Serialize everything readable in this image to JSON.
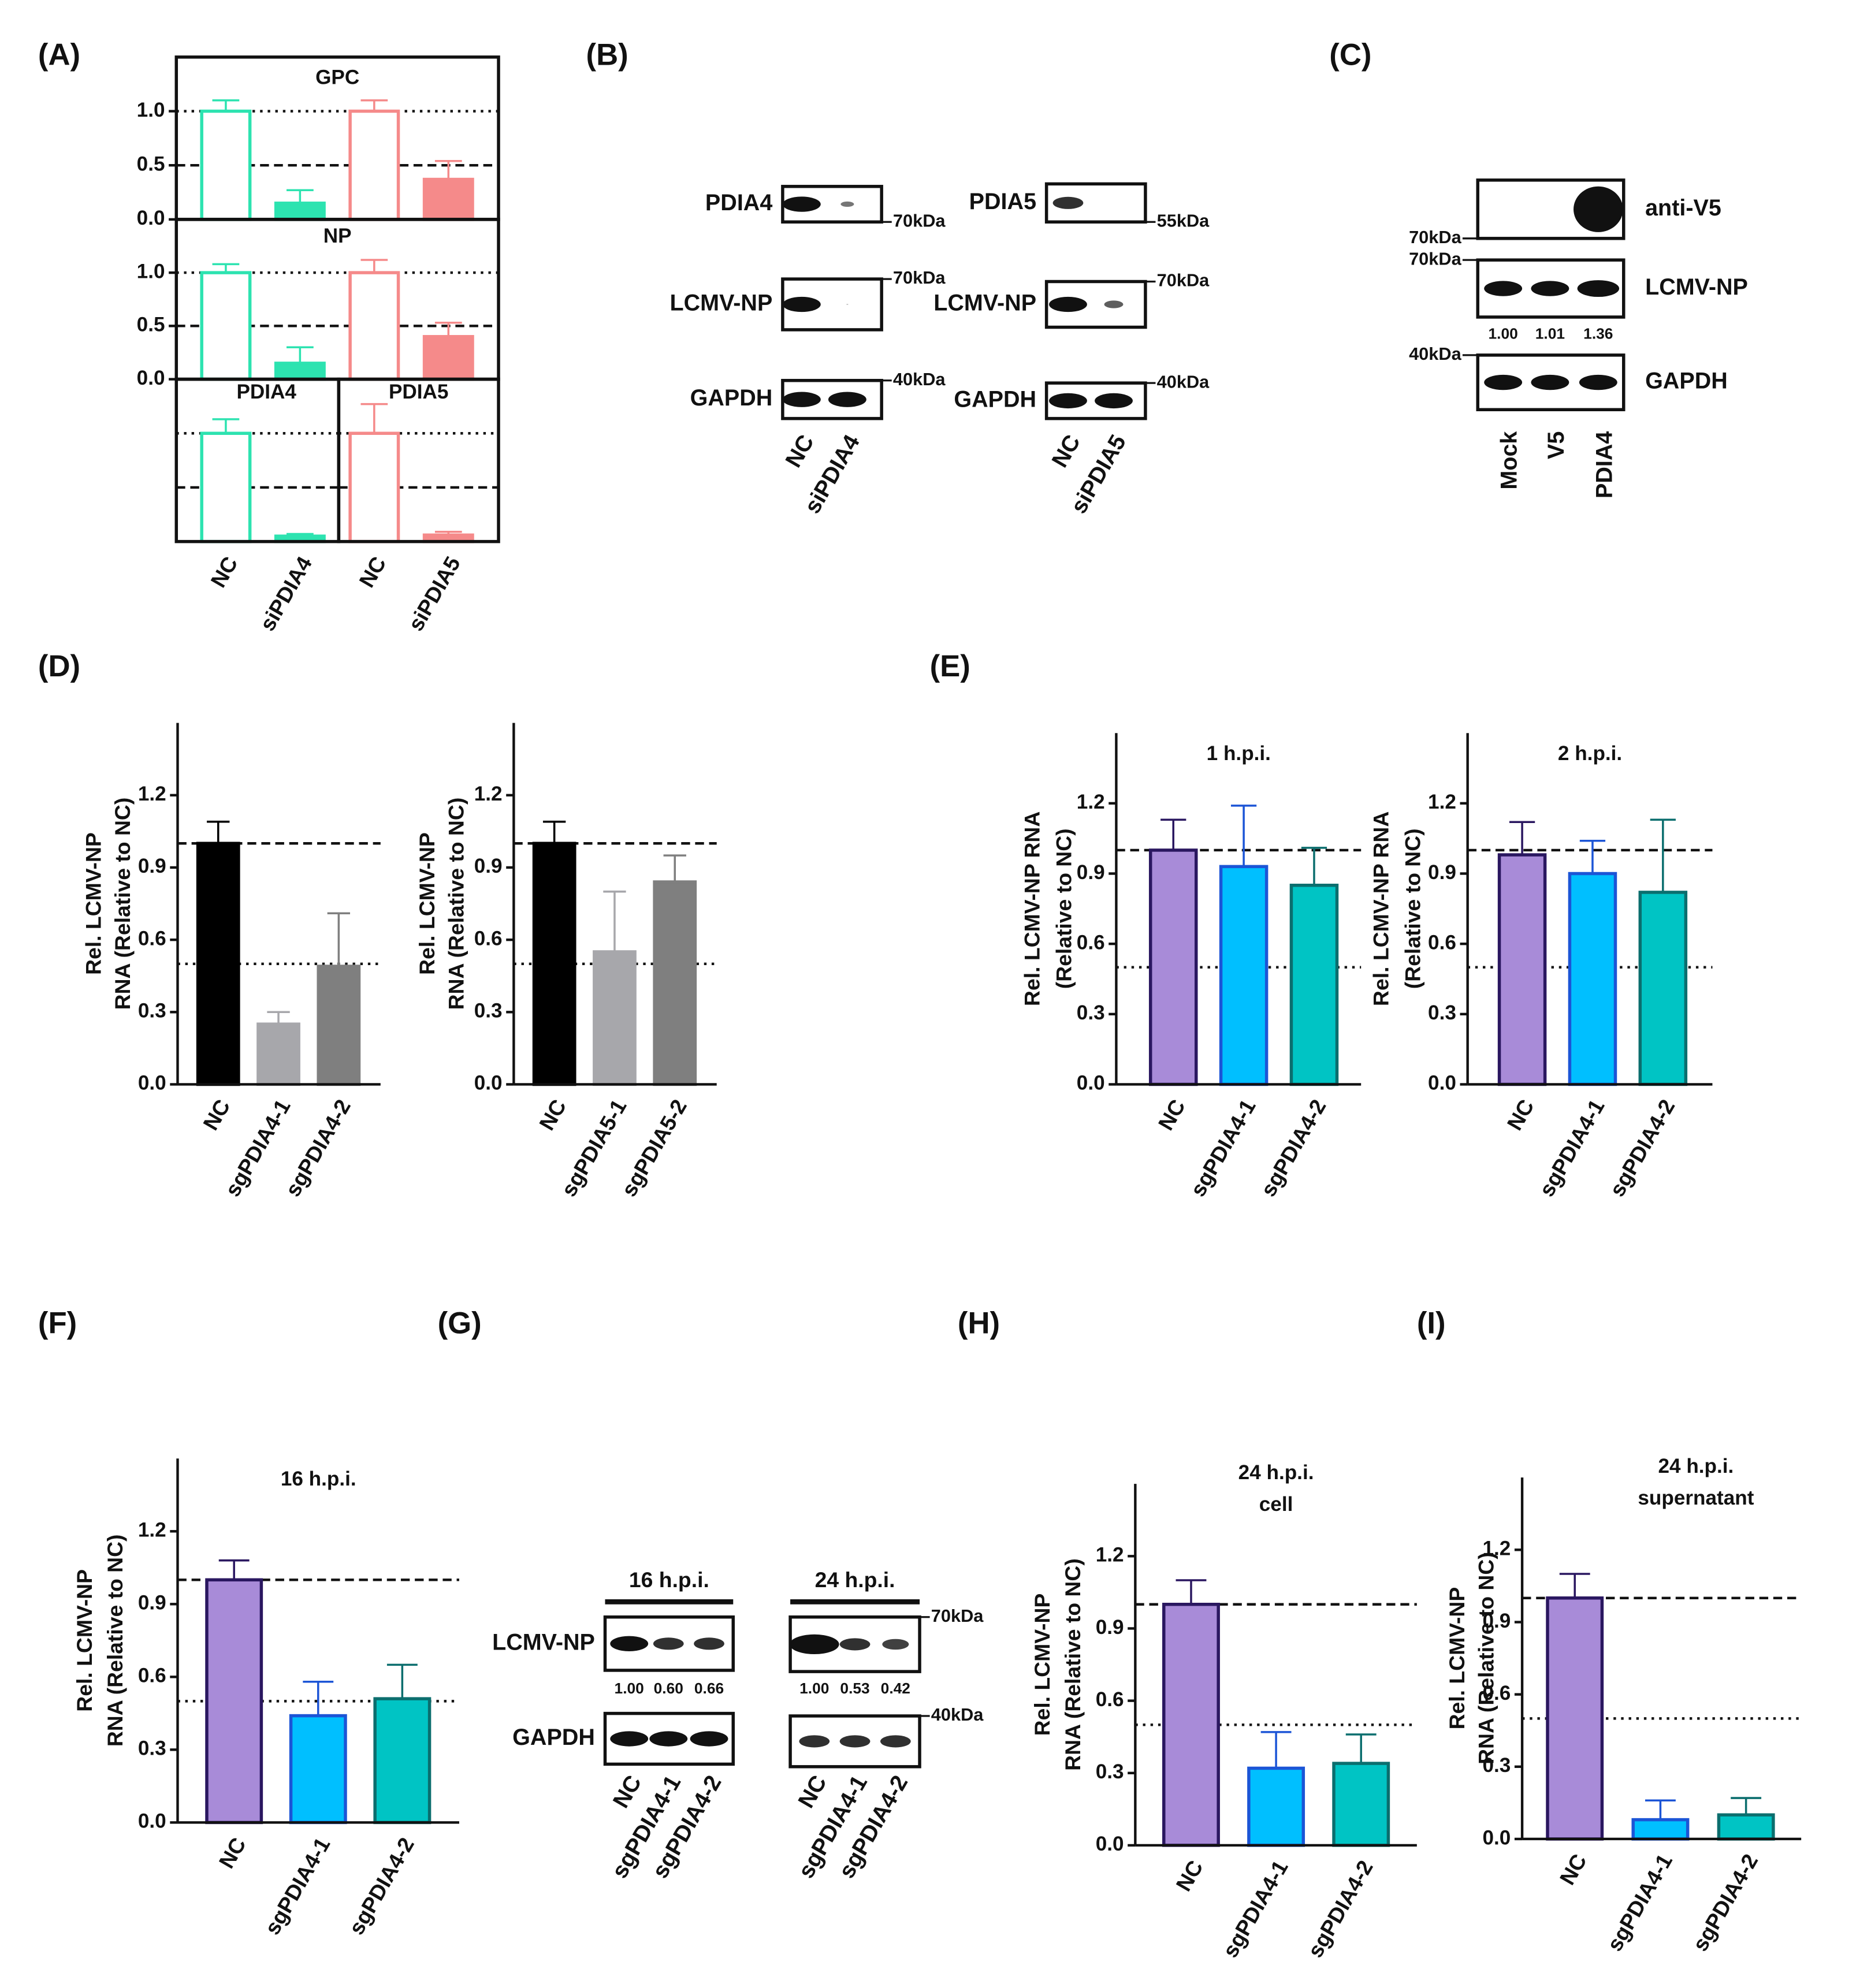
{
  "panel_labels": [
    "(A)",
    "(B)",
    "(C)",
    "(D)",
    "(E)",
    "(F)",
    "(G)",
    "(H)",
    "(I)"
  ],
  "chart_data": [
    {
      "type": "bar",
      "title": "GPC",
      "values": [
        1.0,
        0.15,
        1.0,
        0.37
      ],
      "errors": [
        0.1,
        0.12,
        0.1,
        0.17
      ],
      "colors": [
        "#ffffff",
        "#2de3b0",
        "#ffffff",
        "#f58a8a"
      ],
      "edgecolors": [
        "#2de3b0",
        "#2de3b0",
        "#f58a8a",
        "#f58a8a"
      ],
      "ylim": [
        0,
        1.5
      ],
      "yticks": [
        {
          "value": 0,
          "label": "0.0"
        },
        0.5,
        {
          "value": 1,
          "label": "1.0"
        }
      ],
      "hlines": [
        {
          "value": 1,
          "style": "dotted"
        },
        {
          "value": 0.5,
          "style": "dashed"
        }
      ],
      "frame": "box"
    },
    {
      "type": "bar",
      "title": "NP",
      "values": [
        1.0,
        0.15,
        1.0,
        0.4
      ],
      "errors": [
        0.08,
        0.15,
        0.12,
        0.13
      ],
      "colors": [
        "#ffffff",
        "#2de3b0",
        "#ffffff",
        "#f58a8a"
      ],
      "edgecolors": [
        "#2de3b0",
        "#2de3b0",
        "#f58a8a",
        "#f58a8a"
      ],
      "ylim": [
        0,
        1.5
      ],
      "yticks": [
        {
          "value": 0,
          "label": "0.0"
        },
        0.5,
        {
          "value": 1,
          "label": "1.0"
        }
      ],
      "hlines": [
        {
          "value": 1,
          "style": "dotted"
        },
        {
          "value": 0.5,
          "style": "dashed"
        }
      ],
      "frame": "box"
    },
    {
      "type": "bar",
      "title": "PDIA4",
      "categories": [
        "NC",
        "siPDIA4"
      ],
      "values": [
        1.0,
        0.05
      ],
      "errors": [
        0.13,
        0.02
      ],
      "colors": [
        "#ffffff",
        "#2de3b0"
      ],
      "edgecolors": [
        "#2de3b0",
        "#2de3b0"
      ],
      "ylim": [
        0,
        1.5
      ],
      "hlines": [
        {
          "value": 1,
          "style": "dotted"
        },
        {
          "value": 0.5,
          "style": "dashed"
        }
      ],
      "frame": "box"
    },
    {
      "type": "bar",
      "title": "PDIA5",
      "categories": [
        "NC",
        "siPDIA5"
      ],
      "values": [
        1.0,
        0.06
      ],
      "errors": [
        0.27,
        0.03
      ],
      "colors": [
        "#ffffff",
        "#f58a8a"
      ],
      "edgecolors": [
        "#f58a8a",
        "#f58a8a"
      ],
      "ylim": [
        0,
        1.5
      ],
      "hlines": [
        {
          "value": 1,
          "style": "dotted"
        },
        {
          "value": 0.5,
          "style": "dashed"
        }
      ],
      "frame": "box"
    },
    {
      "type": "bar",
      "ylabel": [
        "Rel. LCMV-NP",
        "RNA (Relative to NC)"
      ],
      "categories": [
        "NC",
        "sgPDIA4-1",
        "sgPDIA4-2"
      ],
      "values": [
        1.0,
        0.25,
        0.49
      ],
      "errors": [
        0.09,
        0.05,
        0.22
      ],
      "colors": [
        "#000000",
        "#a7a7ab",
        "#7f7f7f"
      ],
      "edgecolors": [
        "#000000",
        "#a7a7ab",
        "#7f7f7f"
      ],
      "ylim": [
        0,
        1.5
      ],
      "yticks": [
        {
          "value": 0,
          "label": "0.0"
        },
        0.3,
        0.6,
        0.9,
        1.2
      ],
      "hlines": [
        {
          "value": 1,
          "style": "dashed"
        },
        {
          "value": 0.5,
          "style": "dotted"
        }
      ]
    },
    {
      "type": "bar",
      "ylabel": [
        "Rel. LCMV-NP",
        "RNA (Relative to NC)"
      ],
      "categories": [
        "NC",
        "sgPDIA5-1",
        "sgPDIA5-2"
      ],
      "values": [
        1.0,
        0.55,
        0.84
      ],
      "errors": [
        0.09,
        0.25,
        0.11
      ],
      "colors": [
        "#000000",
        "#a7a7ab",
        "#7f7f7f"
      ],
      "edgecolors": [
        "#000000",
        "#a7a7ab",
        "#7f7f7f"
      ],
      "ylim": [
        0,
        1.5
      ],
      "yticks": [
        {
          "value": 0,
          "label": "0.0"
        },
        0.3,
        0.6,
        0.9,
        1.2
      ],
      "hlines": [
        {
          "value": 1,
          "style": "dashed"
        },
        {
          "value": 0.5,
          "style": "dotted"
        }
      ]
    },
    {
      "type": "bar",
      "title": "1 h.p.i.",
      "ylabel": [
        "Rel. LCMV-NP RNA",
        "(Relative to NC)"
      ],
      "categories": [
        "NC",
        "sgPDIA4-1",
        "sgPDIA4-2"
      ],
      "values": [
        1.0,
        0.93,
        0.85
      ],
      "errors": [
        0.13,
        0.26,
        0.16
      ],
      "colors": [
        "#a88bd8",
        "#00bfff",
        "#00c4c4"
      ],
      "edgecolors": [
        "#2a1760",
        "#1c55d6",
        "#0b6e6e"
      ],
      "ylim": [
        0,
        1.5
      ],
      "yticks": [
        {
          "value": 0,
          "label": "0.0"
        },
        0.3,
        0.6,
        0.9,
        1.2
      ],
      "hlines": [
        {
          "value": 1,
          "style": "dashed"
        },
        {
          "value": 0.5,
          "style": "dotted"
        }
      ]
    },
    {
      "type": "bar",
      "title": "2 h.p.i.",
      "ylabel": [
        "Rel. LCMV-NP RNA",
        "(Relative to NC)"
      ],
      "categories": [
        "NC",
        "sgPDIA4-1",
        "sgPDIA4-2"
      ],
      "values": [
        0.98,
        0.9,
        0.82
      ],
      "errors": [
        0.14,
        0.14,
        0.31
      ],
      "colors": [
        "#a88bd8",
        "#00bfff",
        "#00c4c4"
      ],
      "edgecolors": [
        "#2a1760",
        "#1c55d6",
        "#0b6e6e"
      ],
      "ylim": [
        0,
        1.5
      ],
      "yticks": [
        {
          "value": 0,
          "label": "0.0"
        },
        0.3,
        0.6,
        0.9,
        1.2
      ],
      "hlines": [
        {
          "value": 1,
          "style": "dashed"
        },
        {
          "value": 0.5,
          "style": "dotted"
        }
      ]
    },
    {
      "type": "bar",
      "title": "16 h.p.i.",
      "ylabel": [
        "Rel. LCMV-NP",
        "RNA (Relative to NC)"
      ],
      "categories": [
        "NC",
        "sgPDIA4-1",
        "sgPDIA4-2"
      ],
      "values": [
        1.0,
        0.44,
        0.51
      ],
      "errors": [
        0.08,
        0.14,
        0.14
      ],
      "colors": [
        "#a88bd8",
        "#00bfff",
        "#00c4c4"
      ],
      "edgecolors": [
        "#2a1760",
        "#1c55d6",
        "#0b6e6e"
      ],
      "ylim": [
        0,
        1.5
      ],
      "yticks": [
        {
          "value": 0,
          "label": "0.0"
        },
        0.3,
        0.6,
        0.9,
        1.2
      ],
      "hlines": [
        {
          "value": 1,
          "style": "dashed"
        },
        {
          "value": 0.5,
          "style": "dotted"
        }
      ]
    },
    {
      "type": "bar",
      "title": [
        "24 h.p.i.",
        "cell"
      ],
      "ylabel": [
        "Rel. LCMV-NP",
        "RNA (Relative to NC)"
      ],
      "categories": [
        "NC",
        "sgPDIA4-1",
        "sgPDIA4-2"
      ],
      "values": [
        1.0,
        0.32,
        0.34
      ],
      "errors": [
        0.1,
        0.15,
        0.12
      ],
      "colors": [
        "#a88bd8",
        "#00bfff",
        "#00c4c4"
      ],
      "edgecolors": [
        "#2a1760",
        "#1c55d6",
        "#0b6e6e"
      ],
      "ylim": [
        0,
        1.5
      ],
      "yticks": [
        {
          "value": 0,
          "label": "0.0"
        },
        0.3,
        0.6,
        0.9,
        1.2
      ],
      "hlines": [
        {
          "value": 1,
          "style": "dashed"
        },
        {
          "value": 0.5,
          "style": "dotted"
        }
      ]
    },
    {
      "type": "bar",
      "title": [
        "24 h.p.i.",
        "supernatant"
      ],
      "ylabel": [
        "Rel. LCMV-NP",
        "RNA (Relative to NC)"
      ],
      "categories": [
        "NC",
        "sgPDIA4-1",
        "sgPDIA4-2"
      ],
      "values": [
        1.0,
        0.08,
        0.1
      ],
      "errors": [
        0.1,
        0.08,
        0.07
      ],
      "colors": [
        "#a88bd8",
        "#00bfff",
        "#00c4c4"
      ],
      "edgecolors": [
        "#2a1760",
        "#1c55d6",
        "#0b6e6e"
      ],
      "ylim": [
        0,
        1.5
      ],
      "yticks": [
        {
          "value": 0,
          "label": "0.0"
        },
        0.3,
        0.6,
        0.9,
        1.2
      ],
      "hlines": [
        {
          "value": 1,
          "style": "dashed"
        },
        {
          "value": 0.5,
          "style": "dotted"
        }
      ]
    }
  ],
  "blots": [
    {
      "boxes": [
        {
          "label": "PDIA4",
          "marker": "70kDa"
        },
        {
          "label": "LCMV-NP",
          "marker": "70kDa"
        },
        {
          "label": "GAPDH",
          "marker": "40kDa"
        }
      ],
      "lanes": [
        "NC",
        "siPDIA4"
      ]
    },
    {
      "boxes": [
        {
          "label": "PDIA5",
          "marker": "55kDa"
        },
        {
          "label": "LCMV-NP",
          "marker": "70kDa"
        },
        {
          "label": "GAPDH",
          "marker": "40kDa"
        }
      ],
      "lanes": [
        "NC",
        "siPDIA5"
      ]
    },
    {
      "boxes": [
        {
          "label": "anti-V5",
          "marker": "70kDa"
        },
        {
          "label": "LCMV-NP",
          "marker": "70kDa"
        },
        {
          "label": "GAPDH",
          "marker": "40kDa"
        }
      ],
      "quant": [
        "1.00",
        "1.01",
        "1.36"
      ],
      "lanes": [
        "Mock",
        "V5",
        "PDIA4"
      ]
    },
    {
      "title": "16 h.p.i.",
      "boxes": [
        {
          "label": "LCMV-NP"
        },
        {
          "label": "GAPDH"
        }
      ],
      "quant": [
        "1.00",
        "0.60",
        "0.66"
      ],
      "lanes": [
        "NC",
        "sgPDIA4-1",
        "sgPDIA4-2"
      ]
    },
    {
      "title": "24 h.p.i.",
      "boxes": [
        {
          "marker": "70kDa"
        },
        {
          "marker": "40kDa"
        }
      ],
      "quant": [
        "1.00",
        "0.53",
        "0.42"
      ],
      "lanes": [
        "NC",
        "sgPDIA4-1",
        "sgPDIA4-2"
      ]
    }
  ]
}
